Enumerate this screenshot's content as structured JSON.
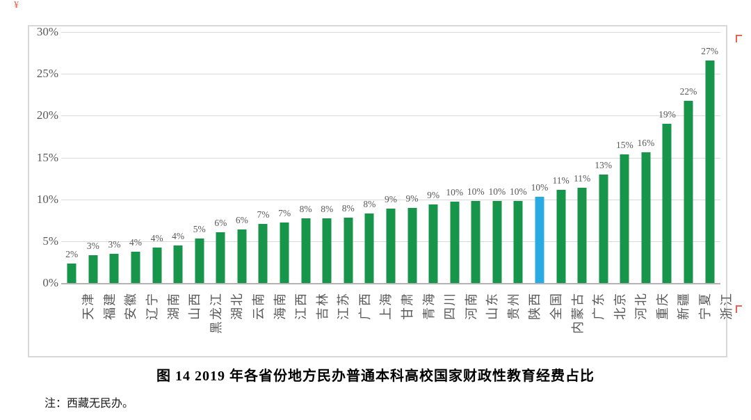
{
  "figure": {
    "title": "图 14 2019 年各省份地方民办普通本科高校国家财政性教育经费占比",
    "note": "注：西藏无民办。"
  },
  "colors": {
    "bar_green": "#17954a",
    "bar_highlight_blue": "#29abe2",
    "gridline": "#d9d9d9",
    "axis_line": "#b3b3b3",
    "tick_text": "#595959",
    "frame_border": "#d8d8d8",
    "annotation_red": "#e04b3a"
  },
  "icons": {
    "top_left_mark": "¥",
    "edge_mark": "red-corner-stroke"
  },
  "chart_data": {
    "type": "bar",
    "title": "图 14 2019 年各省份地方民办普通本科高校国家财政性教育经费占比",
    "xlabel": "",
    "ylabel": "",
    "ylim": [
      0,
      30
    ],
    "grid": true,
    "legend_position": "none",
    "y_ticks": [
      "30%",
      "25%",
      "20%",
      "15%",
      "10%",
      "5%",
      "0%"
    ],
    "categories": [
      "天津",
      "福建",
      "安徽",
      "辽宁",
      "湖南",
      "山西",
      "黑龙江",
      "湖北",
      "云南",
      "海南",
      "江西",
      "吉林",
      "江苏",
      "广西",
      "上海",
      "甘肃",
      "青海",
      "四川",
      "河南",
      "山东",
      "贵州",
      "陕西",
      "全国",
      "内蒙古",
      "广东",
      "北京",
      "河北",
      "重庆",
      "新疆",
      "宁夏",
      "浙江"
    ],
    "labels": [
      "2%",
      "3%",
      "3%",
      "4%",
      "4%",
      "4%",
      "5%",
      "6%",
      "6%",
      "7%",
      "7%",
      "8%",
      "8%",
      "8%",
      "8%",
      "9%",
      "9%",
      "9%",
      "10%",
      "10%",
      "10%",
      "10%",
      "10%",
      "11%",
      "11%",
      "13%",
      "15%",
      "16%",
      "19%",
      "22%",
      "27%"
    ],
    "values": [
      2.3,
      3.3,
      3.5,
      3.7,
      4.2,
      4.5,
      5.3,
      6.1,
      6.4,
      7.1,
      7.2,
      7.7,
      7.7,
      7.8,
      8.3,
      8.9,
      9.0,
      9.4,
      9.7,
      9.8,
      9.8,
      9.8,
      10.3,
      11.1,
      11.4,
      13.0,
      15.4,
      15.6,
      19.0,
      21.8,
      26.6
    ],
    "highlight_category": "全国",
    "highlight_index": 22
  }
}
